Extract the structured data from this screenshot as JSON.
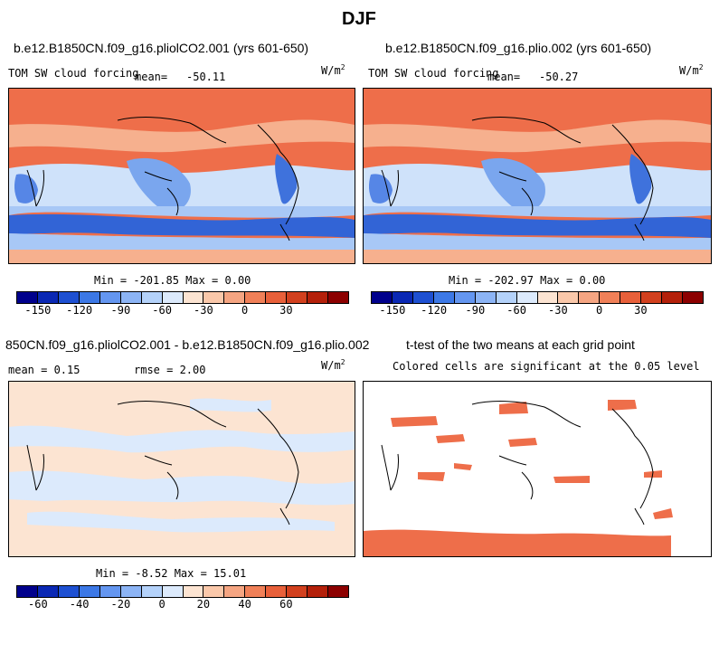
{
  "figure": {
    "title": "DJF"
  },
  "panels": [
    {
      "title": "b.e12.B1850CN.f09_g16.pliolCO2.001 (yrs 601-650)",
      "variable": "TOM SW cloud forcing",
      "mean_label": "mean=",
      "mean": "-50.11",
      "units": "W/m",
      "units_exp": "2",
      "stats": "Min = -201.85 Max =    0.00"
    },
    {
      "title": "b.e12.B1850CN.f09_g16.plio.002 (yrs 601-650)",
      "variable": "TOM SW cloud forcing",
      "mean_label": "mean=",
      "mean": "-50.27",
      "units": "W/m",
      "units_exp": "2",
      "stats": "Min = -202.97 Max =    0.00"
    },
    {
      "title": "850CN.f09_g16.pliolCO2.001 - b.e12.B1850CN.f09_g16.plio.002",
      "mean_text": "mean =   0.15",
      "rmse_text": "rmse =   2.00",
      "units": "W/m",
      "units_exp": "2",
      "stats": "Min =  -8.52 Max =  15.01"
    },
    {
      "title": "t-test of the two means at each grid point",
      "note": "Colored cells are significant at the 0.05 level"
    }
  ],
  "colorbars": {
    "main": {
      "colors": [
        "#00008c",
        "#0a28b4",
        "#1e50d2",
        "#3c78e6",
        "#6496f0",
        "#8cb4f5",
        "#b4d2fa",
        "#dceafc",
        "#fce4d2",
        "#fac8aa",
        "#f5a582",
        "#f08058",
        "#e8603a",
        "#d2401e",
        "#b4200a",
        "#8c0000"
      ],
      "ticks": [
        "-150",
        "-120",
        "-90",
        "-60",
        "-30",
        "0",
        "30"
      ]
    },
    "diff": {
      "colors": [
        "#00008c",
        "#0a28b4",
        "#1e50d2",
        "#3c78e6",
        "#6496f0",
        "#8cb4f5",
        "#b4d2fa",
        "#dceafc",
        "#fce4d2",
        "#fac8aa",
        "#f5a582",
        "#f08058",
        "#e8603a",
        "#d2401e",
        "#b4200a",
        "#8c0000"
      ],
      "ticks": [
        "-60",
        "-40",
        "-20",
        "0",
        "20",
        "40",
        "60"
      ]
    }
  }
}
